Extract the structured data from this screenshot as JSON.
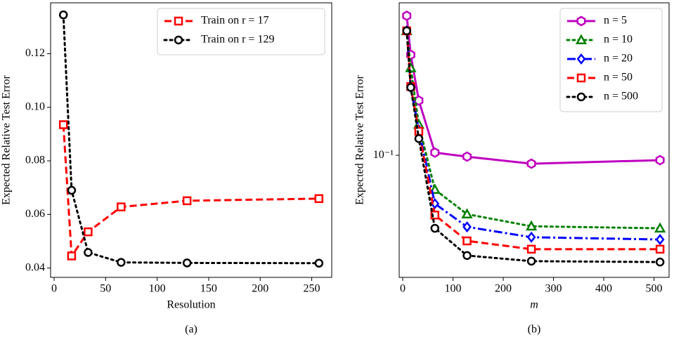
{
  "chart_data": [
    {
      "type": "line",
      "caption": "(a)",
      "x_label": "Resolution",
      "y_label": "Expected Relative Test Error",
      "x": [
        9,
        17,
        33,
        65,
        129,
        257
      ],
      "series": [
        {
          "name": "Train on r = 17",
          "color": "#ff0000",
          "linestyle": "dashed",
          "marker": "square",
          "values": [
            0.0935,
            0.0445,
            0.0535,
            0.0628,
            0.0651,
            0.0659
          ]
        },
        {
          "name": "Train on r = 129",
          "color": "#000000",
          "linestyle": "dotted",
          "marker": "circle",
          "values": [
            0.1345,
            0.069,
            0.0458,
            0.0421,
            0.0419,
            0.0418
          ]
        }
      ],
      "xlim": [
        -3.4,
        269.4
      ],
      "ylim": [
        0.0365,
        0.139
      ],
      "xticks": [
        0,
        50,
        100,
        150,
        200,
        250
      ],
      "yticks": [
        0.04,
        0.06,
        0.08,
        {
          "value": 0.1,
          "label": "0.10"
        },
        0.12
      ],
      "legend": "upper right"
    },
    {
      "type": "line",
      "caption": "(b)",
      "x_label": "m",
      "y_label": "Expected Relative Test Error",
      "log_y": true,
      "x": [
        8,
        16,
        32,
        64,
        128,
        256,
        512
      ],
      "series": [
        {
          "name": "n = 5",
          "color": "#bf00bf",
          "linestyle": "solid",
          "marker": "hexagon",
          "values": [
            0.46,
            0.3,
            0.182,
            0.103,
            0.0985,
            0.0912,
            0.0948
          ]
        },
        {
          "name": "n = 10",
          "color": "#008000",
          "linestyle": "dotted",
          "marker": "triangle",
          "values": [
            0.39,
            0.26,
            0.14,
            0.0687,
            0.0525,
            0.046,
            0.045
          ]
        },
        {
          "name": "n = 20",
          "color": "#0000ff",
          "linestyle": "dashdot",
          "marker": "diamond",
          "values": [
            0.39,
            0.21,
            0.132,
            0.0589,
            0.0457,
            0.0408,
            0.0398
          ]
        },
        {
          "name": "n = 50",
          "color": "#ff0000",
          "linestyle": "dashed",
          "marker": "square",
          "values": [
            0.39,
            0.212,
            0.13,
            0.052,
            0.0392,
            0.0358,
            0.0358
          ]
        },
        {
          "name": "n = 500",
          "color": "#000000",
          "linestyle": "dotted",
          "marker": "circle",
          "values": [
            0.39,
            0.21,
            0.12,
            0.045,
            0.0334,
            0.0314,
            0.0311
          ]
        }
      ],
      "xlim": [
        -7,
        530
      ],
      "ylim": [
        0.0263,
        0.53
      ],
      "xticks": [
        0,
        100,
        200,
        300,
        400,
        500
      ],
      "yticks": [
        {
          "value": 0.1,
          "label": "10⁻¹"
        }
      ],
      "legend": "upper right"
    }
  ]
}
